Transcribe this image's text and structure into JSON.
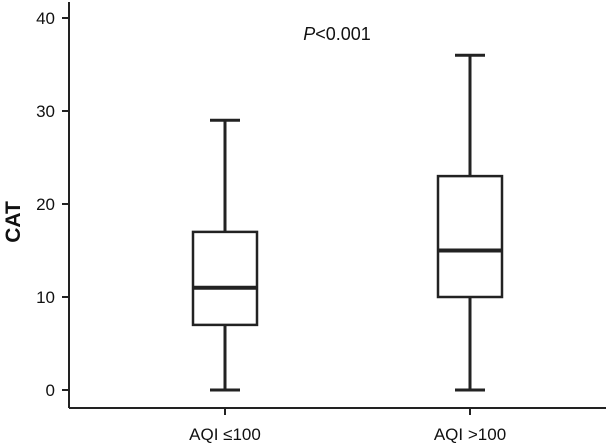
{
  "chart_data": {
    "type": "box",
    "ylabel": "CAT",
    "xlabel": "",
    "ylim": [
      -2,
      41
    ],
    "yticks": [
      0,
      10,
      20,
      30,
      40
    ],
    "categories": [
      "AQI ≤100",
      "AQI >100"
    ],
    "boxes": [
      {
        "category": "AQI ≤100",
        "min": 0,
        "q1": 7,
        "median": 11,
        "q3": 17,
        "max": 29
      },
      {
        "category": "AQI >100",
        "min": 0,
        "q1": 10,
        "median": 15,
        "q3": 23,
        "max": 36
      }
    ],
    "annotation": {
      "prefix": "P",
      "text": "<0.001"
    },
    "grid": false,
    "colors": {
      "stroke": "#222222",
      "box_fill": "#ffffff"
    }
  }
}
